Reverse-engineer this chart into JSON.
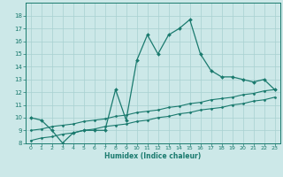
{
  "x": [
    0,
    1,
    2,
    3,
    4,
    5,
    6,
    7,
    8,
    9,
    10,
    11,
    12,
    13,
    14,
    15,
    16,
    17,
    18,
    19,
    20,
    21,
    22,
    23
  ],
  "y_main": [
    10,
    9.8,
    9.0,
    8.0,
    8.8,
    9.0,
    9.0,
    9.0,
    12.2,
    9.8,
    14.5,
    16.5,
    15.0,
    16.5,
    17.0,
    17.7,
    15.0,
    13.7,
    13.2,
    13.2,
    13.0,
    12.8,
    13.0,
    12.2
  ],
  "y_line1": [
    9.0,
    9.1,
    9.3,
    9.4,
    9.5,
    9.7,
    9.8,
    9.9,
    10.1,
    10.2,
    10.4,
    10.5,
    10.6,
    10.8,
    10.9,
    11.1,
    11.2,
    11.4,
    11.5,
    11.6,
    11.8,
    11.9,
    12.1,
    12.2
  ],
  "y_line2": [
    8.2,
    8.4,
    8.5,
    8.7,
    8.8,
    9.0,
    9.1,
    9.3,
    9.4,
    9.5,
    9.7,
    9.8,
    10.0,
    10.1,
    10.3,
    10.4,
    10.6,
    10.7,
    10.8,
    11.0,
    11.1,
    11.3,
    11.4,
    11.6
  ],
  "line_color": "#1a7a6e",
  "bg_color": "#cce8e8",
  "grid_color": "#a8d0d0",
  "xlabel": "Humidex (Indice chaleur)",
  "ylim": [
    8,
    19
  ],
  "xlim": [
    -0.5,
    23.5
  ],
  "yticks": [
    8,
    9,
    10,
    11,
    12,
    13,
    14,
    15,
    16,
    17,
    18
  ],
  "xticks": [
    0,
    1,
    2,
    3,
    4,
    5,
    6,
    7,
    8,
    9,
    10,
    11,
    12,
    13,
    14,
    15,
    16,
    17,
    18,
    19,
    20,
    21,
    22,
    23
  ]
}
